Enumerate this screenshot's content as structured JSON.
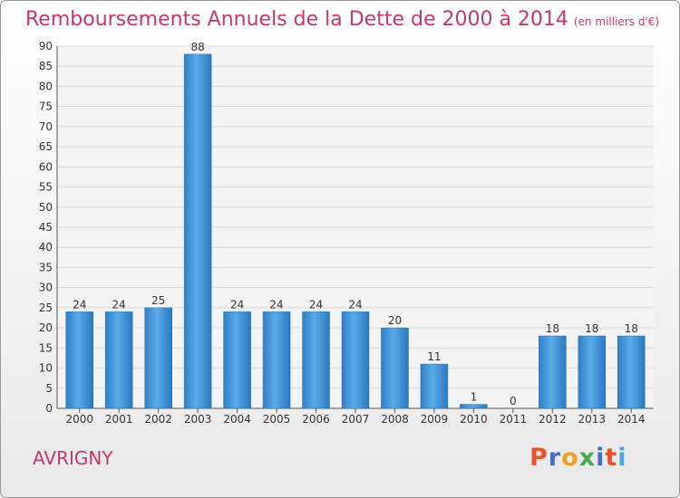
{
  "chart_data": {
    "type": "bar",
    "title": "Remboursements Annuels de la Dette de 2000 à 2014",
    "subtitle": "(en milliers d'€)",
    "categories": [
      "2000",
      "2001",
      "2002",
      "2003",
      "2004",
      "2005",
      "2006",
      "2007",
      "2008",
      "2009",
      "2010",
      "2011",
      "2012",
      "2013",
      "2014"
    ],
    "values": [
      24,
      24,
      25,
      88,
      24,
      24,
      24,
      24,
      20,
      11,
      1,
      0,
      18,
      18,
      18
    ],
    "ylim": [
      0,
      90
    ],
    "yticks": [
      0,
      5,
      10,
      15,
      20,
      25,
      30,
      35,
      40,
      45,
      50,
      55,
      60,
      65,
      70,
      75,
      80,
      85,
      90
    ],
    "grid": true,
    "bar_color": "#3d8fd6",
    "title_color": "#c6386b"
  },
  "footer": {
    "commune": "AVRIGNY",
    "logo_text": "Proxiti",
    "logo_colors": [
      "#e8542a",
      "#3f6fc6",
      "#f0a023",
      "#4aa84a",
      "#3f6fc6",
      "#e8542a",
      "#49a6d8"
    ]
  }
}
